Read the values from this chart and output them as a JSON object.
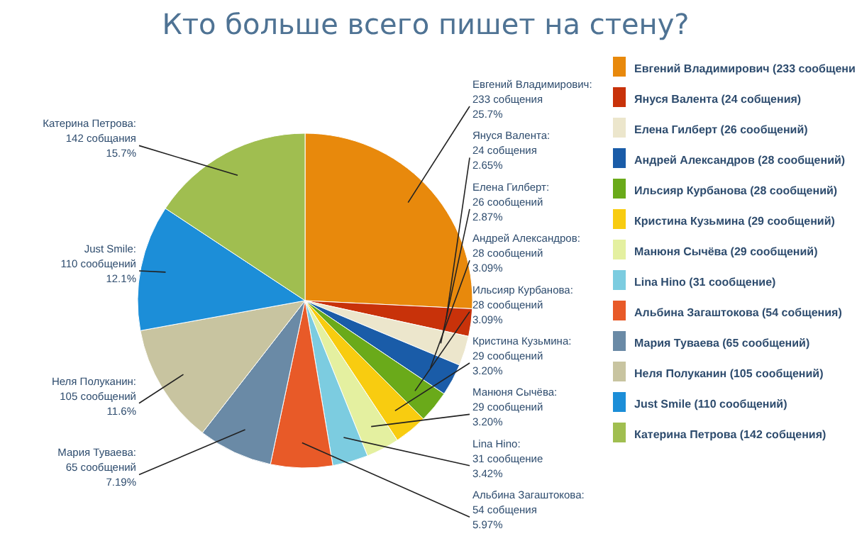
{
  "chart_data": {
    "type": "pie",
    "title": "Кто больше всего пишет на стену?",
    "categories": [
      "Евгений Владимирович (233 сообщени",
      "Януся Валента (24 собщения)",
      "Елена Гилберт (26 сообщений)",
      "Андрей Александров (28 сообщений)",
      "Ильсияр Курбанова (28 сообщений)",
      "Кристина Кузьмина (29 сообщений)",
      "Манюня Сычёва (29 сообщений)",
      "Lina Hino (31 сообщение)",
      "Альбина Загаштокова (54 собщения)",
      "Мария Туваева (65 сообщений)",
      "Неля Полуканин (105 сообщений)",
      "Just Smile (110 сообщений)",
      "Катерина Петрова (142 собщения)"
    ],
    "values": [
      233,
      24,
      26,
      28,
      28,
      29,
      29,
      31,
      54,
      65,
      105,
      110,
      142
    ],
    "colors": [
      "#e8890c",
      "#c8320a",
      "#ece6cc",
      "#1a5ca8",
      "#6aaa1a",
      "#f8cc10",
      "#e4f0a0",
      "#7ccce0",
      "#e85a28",
      "#6a8aa6",
      "#c8c4a0",
      "#1c8ed8",
      "#a0be50"
    ],
    "value_labels": [
      "Евгений Владимирович:\n233 собщения\n25.7%",
      "Януся Валента:\n24 собщения\n2.65%",
      "Елена Гилберт:\n26 сообщений\n2.87%",
      "Андрей Александров:\n28 сообщений\n3.09%",
      "Ильсияр Курбанова:\n28 сообщений\n3.09%",
      "Кристина Кузьмина:\n29 сообщений\n3.20%",
      "Манюня Сычёва:\n29 сообщений\n3.20%",
      "Lina Hino:\n31 сообщение\n3.42%",
      "Альбина Загаштокова:\n54 собщения\n5.97%",
      "Мария Туваева:\n65 сообщений\n7.19%",
      "Неля Полуканин:\n105 сообщений\n11.6%",
      "Just Smile:\n110 сообщений\n12.1%",
      "Катерина Петрова:\n142 собщания\n15.7%"
    ],
    "legend": "right"
  }
}
